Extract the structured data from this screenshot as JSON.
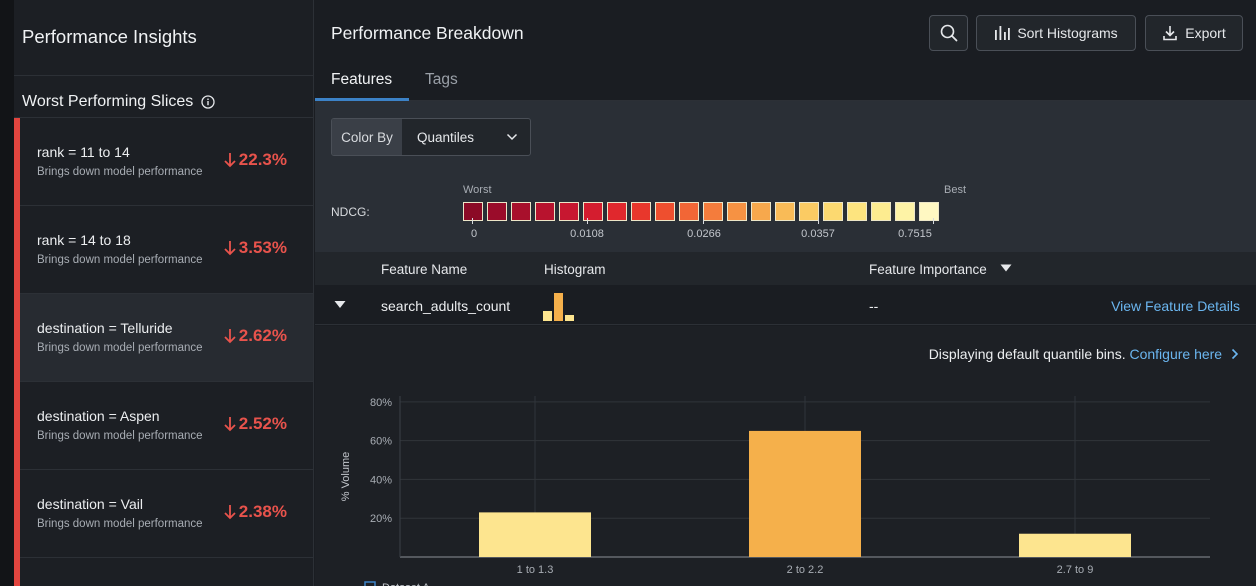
{
  "sidebar": {
    "title": "Performance Insights",
    "subtitle": "Worst Performing Slices",
    "slices": [
      {
        "name": "rank = 11 to 14",
        "desc": "Brings down model performance",
        "value": "22.3%"
      },
      {
        "name": "rank = 14 to 18",
        "desc": "Brings down model performance",
        "value": "3.53%"
      },
      {
        "name": "destination = Telluride",
        "desc": "Brings down model performance",
        "value": "2.62%"
      },
      {
        "name": "destination = Aspen",
        "desc": "Brings down model performance",
        "value": "2.52%"
      },
      {
        "name": "destination = Vail",
        "desc": "Brings down model performance",
        "value": "2.38%"
      }
    ]
  },
  "header": {
    "title": "Performance Breakdown",
    "sort_label": "Sort Histograms",
    "export_label": "Export"
  },
  "tabs": [
    {
      "label": "Features"
    },
    {
      "label": "Tags"
    }
  ],
  "color_by": {
    "label": "Color By",
    "value": "Quantiles"
  },
  "scale": {
    "metric_label": "NDCG:",
    "worst_label": "Worst",
    "best_label": "Best",
    "swatch_colors": [
      "#8b0a26",
      "#9a0c2a",
      "#a8102c",
      "#b8132e",
      "#c71730",
      "#d41d2f",
      "#e0282d",
      "#e8372c",
      "#ee4f2f",
      "#f26636",
      "#f47c3c",
      "#f69243",
      "#f7a84c",
      "#f9bb57",
      "#fbcb63",
      "#fcd970",
      "#fde47f",
      "#fdec90",
      "#fef3a6",
      "#fff8c2"
    ],
    "ticks": [
      "0",
      "0.0108",
      "0.0266",
      "0.0357",
      "0.7515"
    ]
  },
  "table": {
    "headers": {
      "feature": "Feature Name",
      "histogram": "Histogram",
      "importance": "Feature Importance"
    },
    "row": {
      "name": "search_adults_count",
      "importance": "--",
      "link": "View Feature Details"
    }
  },
  "detail": {
    "note": "Displaying default quantile bins.",
    "configure_link": "Configure here"
  },
  "chart_data": {
    "type": "bar",
    "categories": [
      "1 to 1.3",
      "2 to 2.2",
      "2.7 to 9"
    ],
    "values": [
      23,
      65,
      12
    ],
    "colors": [
      "#fde58f",
      "#f5b04b",
      "#fde58f"
    ],
    "ylabel": "% Volume",
    "yticks": [
      "20%",
      "40%",
      "60%",
      "80%"
    ],
    "ytick_values": [
      20,
      40,
      60,
      80
    ],
    "ylim": [
      0,
      83
    ],
    "legend": "Dataset A"
  }
}
